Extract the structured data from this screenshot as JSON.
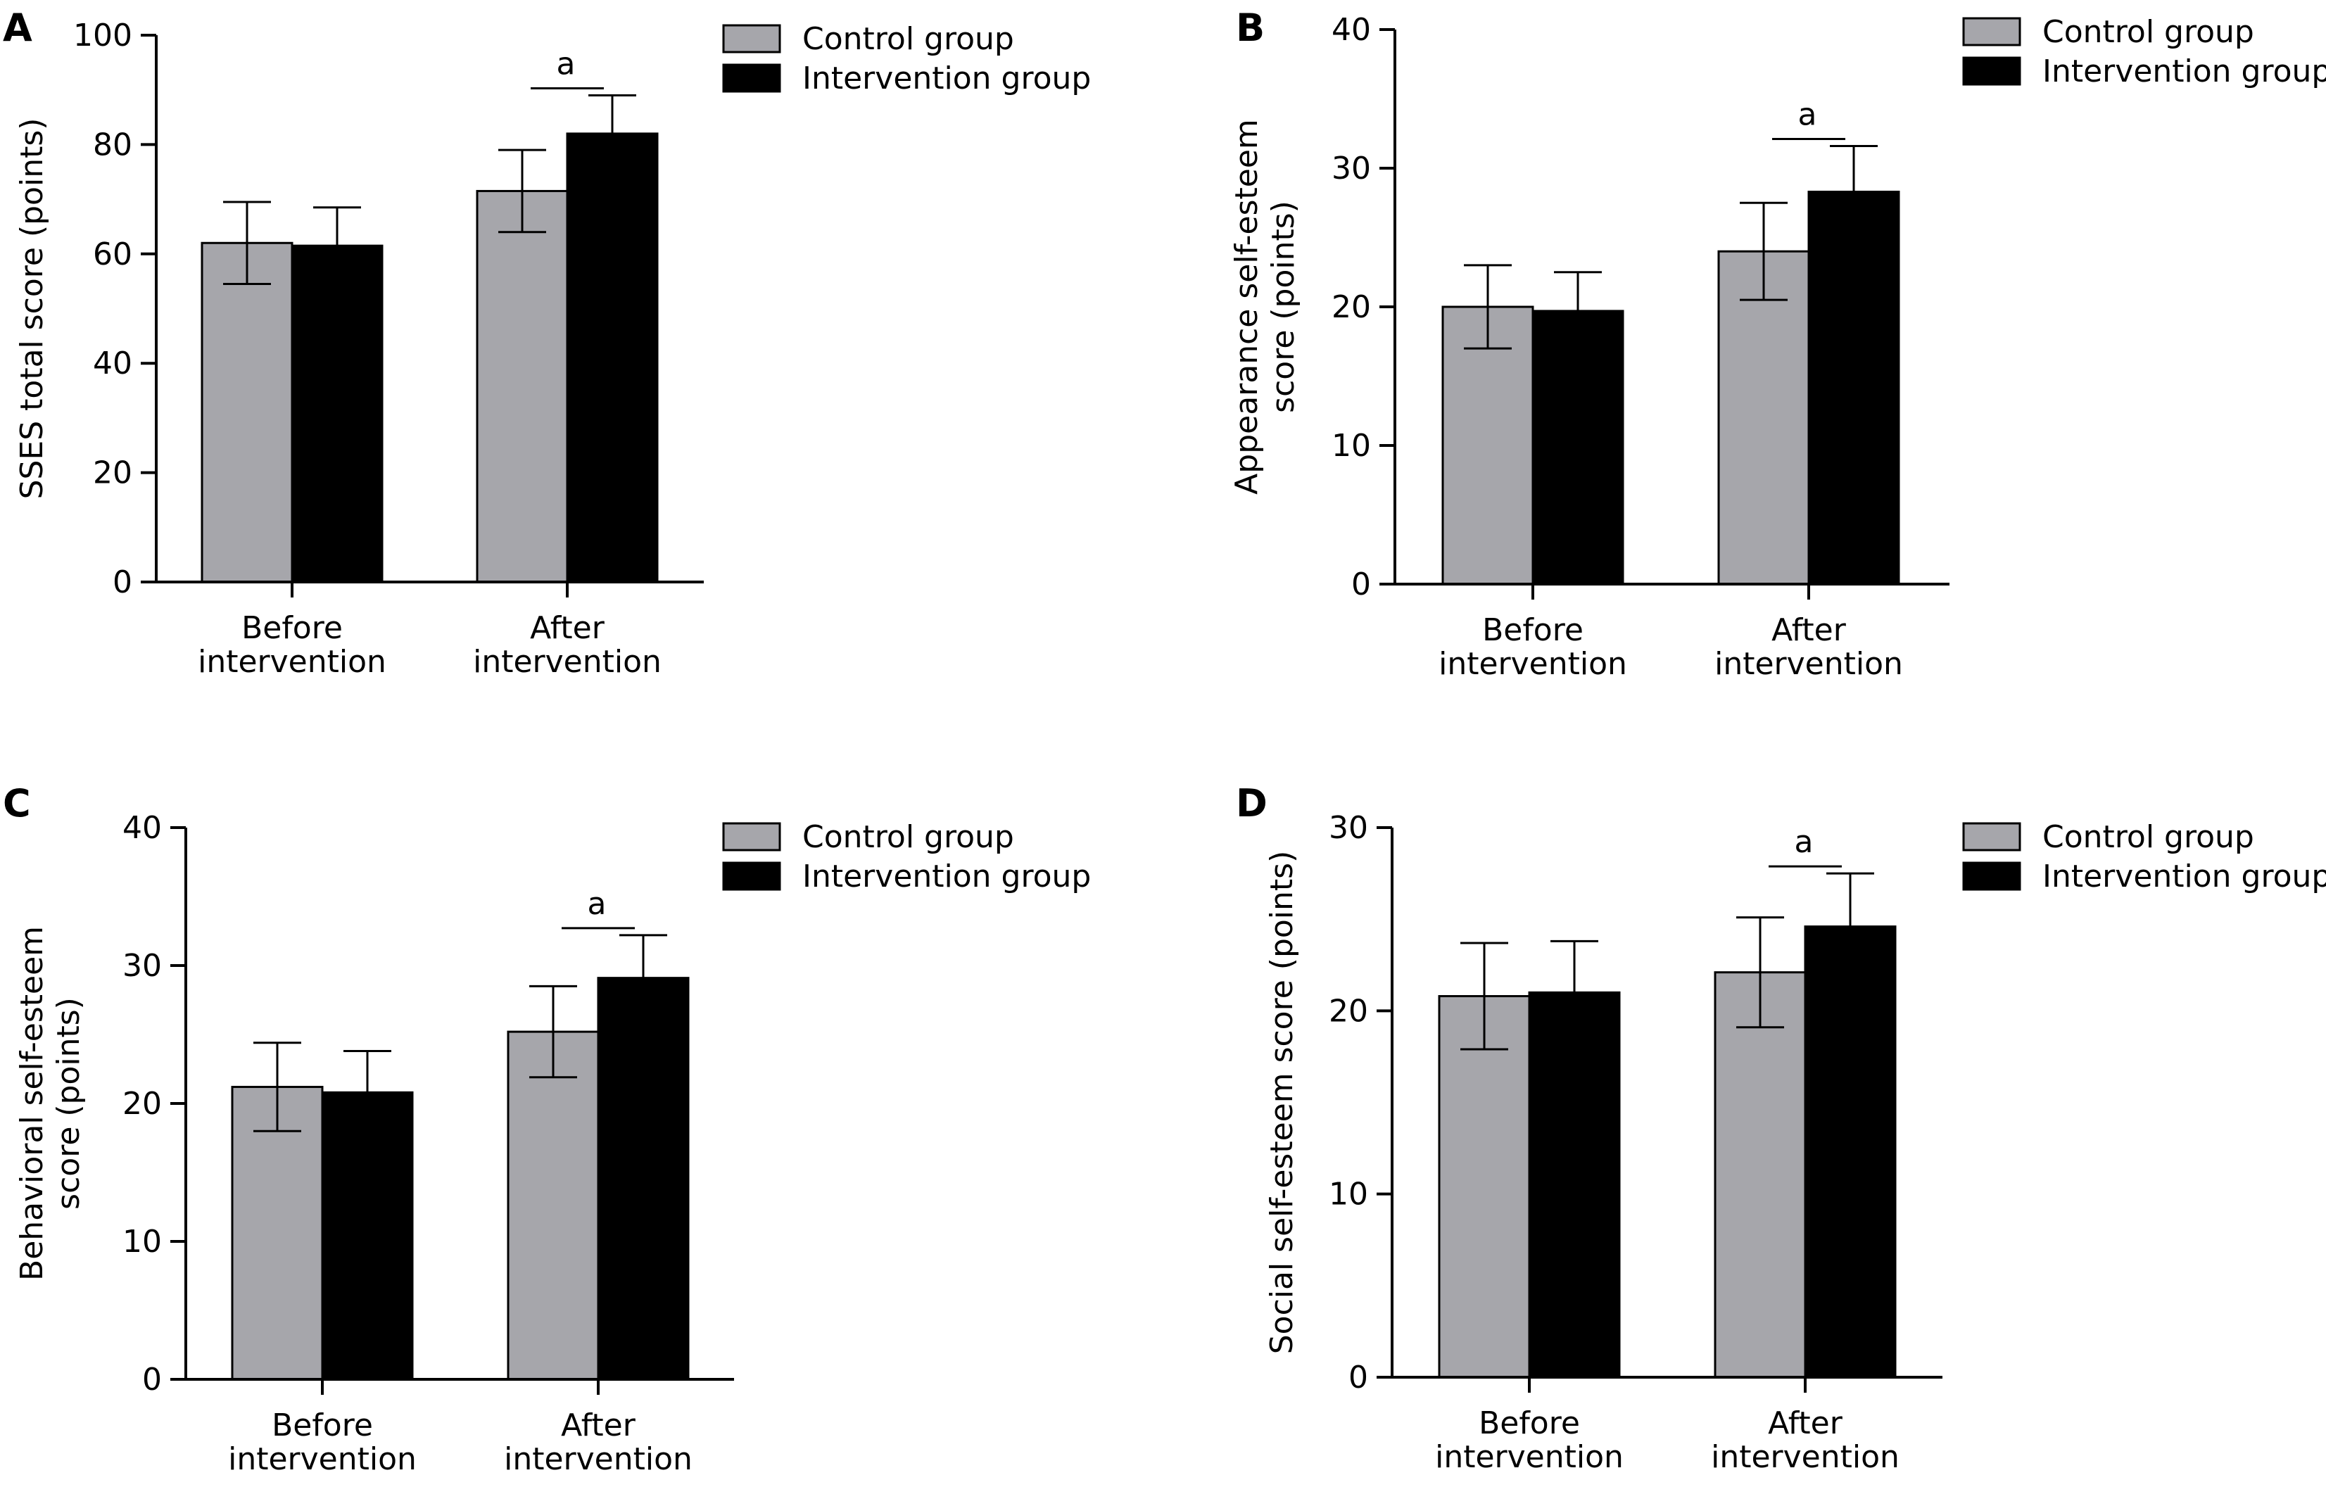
{
  "colors": {
    "control": "#a6a6ab",
    "intervention": "#000000",
    "axis": "#000000"
  },
  "chart_data": [
    {
      "panel": "A",
      "type": "bar",
      "ylabel": [
        "SSES total score (points)"
      ],
      "ylim": [
        0,
        100
      ],
      "yticks": [
        0,
        20,
        40,
        60,
        80,
        100
      ],
      "categories": [
        [
          "Before",
          "intervention"
        ],
        [
          "After",
          "intervention"
        ]
      ],
      "series": [
        {
          "name": "Control group",
          "values": [
            62,
            71.5
          ],
          "errors": [
            7.5,
            7.5
          ]
        },
        {
          "name": "Intervention group",
          "values": [
            61.5,
            82
          ],
          "errors": [
            7,
            7
          ]
        }
      ],
      "annotation": {
        "text": "a",
        "category": 1
      },
      "legend": "top-right"
    },
    {
      "panel": "B",
      "type": "bar",
      "ylabel": [
        "Appearance self-esteem",
        "score (points)"
      ],
      "ylim": [
        0,
        40
      ],
      "yticks": [
        0,
        10,
        20,
        30,
        40
      ],
      "categories": [
        [
          "Before",
          "intervention"
        ],
        [
          "After",
          "intervention"
        ]
      ],
      "series": [
        {
          "name": "Control group",
          "values": [
            20,
            24
          ],
          "errors": [
            3,
            3.5
          ]
        },
        {
          "name": "Intervention group",
          "values": [
            19.7,
            28.3
          ],
          "errors": [
            2.8,
            3.3
          ]
        }
      ],
      "annotation": {
        "text": "a",
        "category": 1
      },
      "legend": "top-right"
    },
    {
      "panel": "C",
      "type": "bar",
      "ylabel": [
        "Behavioral self-esteem",
        "score (points)"
      ],
      "ylim": [
        0,
        40
      ],
      "yticks": [
        0,
        10,
        20,
        30,
        40
      ],
      "categories": [
        [
          "Before",
          "intervention"
        ],
        [
          "After",
          "intervention"
        ]
      ],
      "series": [
        {
          "name": "Control group",
          "values": [
            21.2,
            25.2
          ],
          "errors": [
            3.2,
            3.3
          ]
        },
        {
          "name": "Intervention group",
          "values": [
            20.8,
            29.1
          ],
          "errors": [
            3,
            3.1
          ]
        }
      ],
      "annotation": {
        "text": "a",
        "category": 1
      },
      "legend": "top-right"
    },
    {
      "panel": "D",
      "type": "bar",
      "ylabel": [
        "Social self-esteem score (points)"
      ],
      "ylim": [
        0,
        30
      ],
      "yticks": [
        0,
        10,
        20,
        30
      ],
      "categories": [
        [
          "Before",
          "intervention"
        ],
        [
          "After",
          "intervention"
        ]
      ],
      "series": [
        {
          "name": "Control group",
          "values": [
            20.8,
            22.1
          ],
          "errors": [
            2.9,
            3
          ]
        },
        {
          "name": "Intervention group",
          "values": [
            21,
            24.6
          ],
          "errors": [
            2.8,
            2.9
          ]
        }
      ],
      "annotation": {
        "text": "a",
        "category": 1
      },
      "legend": "top-right"
    }
  ]
}
